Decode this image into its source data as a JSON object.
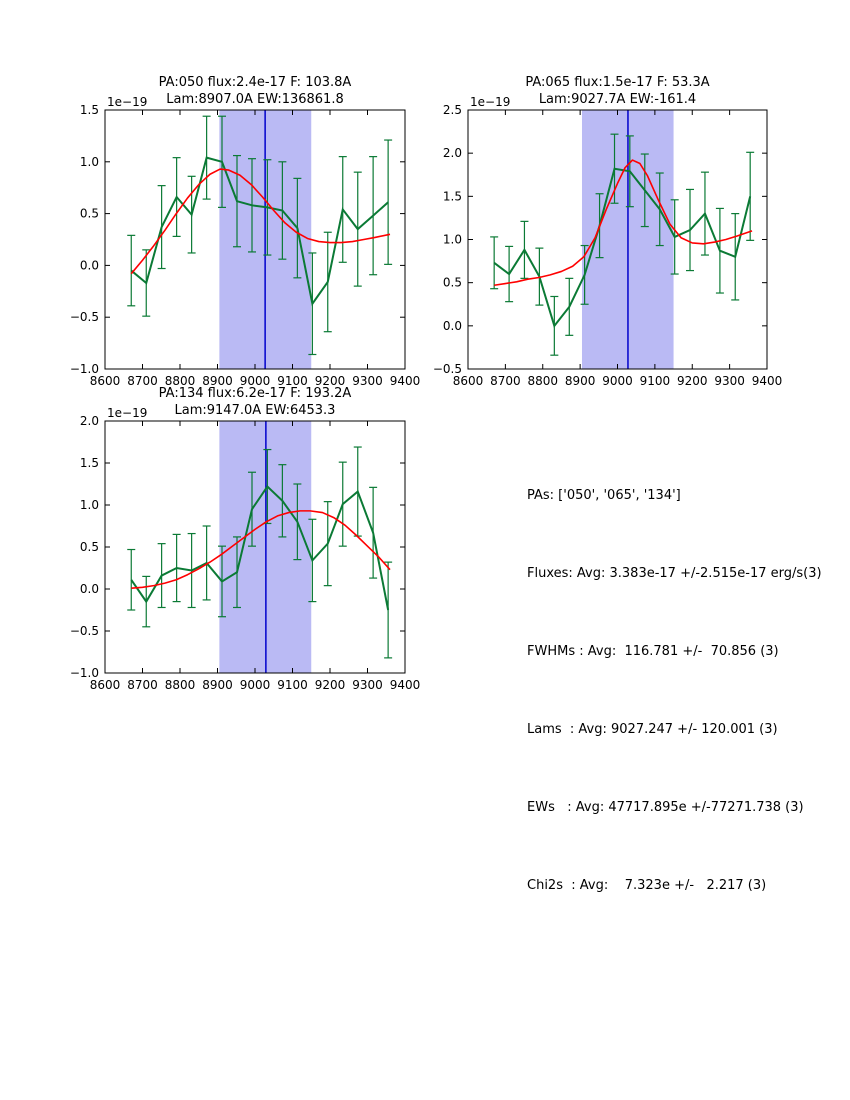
{
  "colors": {
    "data_line": "#0b7a35",
    "error_bar": "#0b7a35",
    "fit_line": "#ff0000",
    "band_fill": "#babaf4",
    "center_line": "#0000cc",
    "axis": "#000000",
    "background": "#ffffff"
  },
  "stats_panel": {
    "lines": [
      "PAs: ['050', '065', '134']",
      "Fluxes: Avg: 3.383e-17 +/-2.515e-17 erg/s(3)",
      "FWHMs : Avg:  116.781 +/-  70.856 (3)",
      "Lams  : Avg: 9027.247 +/- 120.001 (3)",
      "EWs   : Avg: 47717.895e +/-77271.738 (3)",
      "Chi2s  : Avg:    7.323e +/-   2.217 (3)"
    ]
  },
  "chart_data": [
    {
      "type": "line",
      "title_line1": "PA:050 flux:2.4e-17 F: 103.8A",
      "title_line2": "Lam:8907.0A EW:136861.8",
      "offset_label": "1e−19",
      "xlim": [
        8600,
        9400
      ],
      "ylim": [
        -1.0,
        1.5
      ],
      "xtick_values": [
        8600,
        8700,
        8800,
        8900,
        9000,
        9100,
        9200,
        9300,
        9400
      ],
      "xtick_labels": [
        "8600",
        "8700",
        "8800",
        "8900",
        "9000",
        "9100",
        "9200",
        "9300",
        "9400"
      ],
      "ytick_values": [
        -1.0,
        -0.5,
        0.0,
        0.5,
        1.0,
        1.5
      ],
      "ytick_labels": [
        "−1.0",
        "−0.5",
        "0.0",
        "0.5",
        "1.0",
        "1.5"
      ],
      "band": [
        8905,
        9150
      ],
      "center_line_x": 9027,
      "grid": false,
      "legend": null,
      "data_series": {
        "name": "spectrum",
        "x": [
          8670,
          8710,
          8751,
          8791,
          8831,
          8871,
          8912,
          8952,
          8992,
          9033,
          9073,
          9113,
          9153,
          9194,
          9234,
          9274,
          9315,
          9355
        ],
        "y": [
          -0.05,
          -0.17,
          0.37,
          0.66,
          0.49,
          1.04,
          1.0,
          0.62,
          0.58,
          0.56,
          0.53,
          0.36,
          -0.37,
          -0.16,
          0.54,
          0.35,
          0.48,
          0.61
        ],
        "yerr": [
          0.34,
          0.32,
          0.4,
          0.38,
          0.37,
          0.4,
          0.44,
          0.44,
          0.45,
          0.46,
          0.47,
          0.48,
          0.49,
          0.48,
          0.51,
          0.55,
          0.57,
          0.6
        ]
      },
      "fit_series": {
        "name": "gaussian-fit",
        "x": [
          8670,
          8700,
          8730,
          8760,
          8790,
          8820,
          8850,
          8880,
          8907,
          8930,
          8960,
          8990,
          9020,
          9050,
          9080,
          9110,
          9140,
          9170,
          9200,
          9230,
          9260,
          9290,
          9320,
          9360
        ],
        "y": [
          -0.08,
          0.05,
          0.19,
          0.34,
          0.5,
          0.65,
          0.78,
          0.88,
          0.93,
          0.92,
          0.87,
          0.78,
          0.66,
          0.53,
          0.41,
          0.32,
          0.26,
          0.23,
          0.22,
          0.22,
          0.23,
          0.25,
          0.27,
          0.3
        ]
      }
    },
    {
      "type": "line",
      "title_line1": "PA:065 flux:1.5e-17 F: 53.3A",
      "title_line2": "Lam:9027.7A EW:-161.4",
      "offset_label": "1e−19",
      "xlim": [
        8600,
        9400
      ],
      "ylim": [
        -0.5,
        2.5
      ],
      "xtick_values": [
        8600,
        8700,
        8800,
        8900,
        9000,
        9100,
        9200,
        9300,
        9400
      ],
      "xtick_labels": [
        "8600",
        "8700",
        "8800",
        "8900",
        "9000",
        "9100",
        "9200",
        "9300",
        "9400"
      ],
      "ytick_values": [
        -0.5,
        0.0,
        0.5,
        1.0,
        1.5,
        2.0,
        2.5
      ],
      "ytick_labels": [
        "−0.5",
        "0.0",
        "0.5",
        "1.0",
        "1.5",
        "2.0",
        "2.5"
      ],
      "band": [
        8905,
        9150
      ],
      "center_line_x": 9028,
      "grid": false,
      "legend": null,
      "data_series": {
        "name": "spectrum",
        "x": [
          8670,
          8710,
          8751,
          8791,
          8831,
          8871,
          8912,
          8952,
          8992,
          9033,
          9073,
          9113,
          9153,
          9194,
          9234,
          9274,
          9315,
          9355
        ],
        "y": [
          0.73,
          0.6,
          0.88,
          0.57,
          0.0,
          0.22,
          0.59,
          1.16,
          1.82,
          1.79,
          1.57,
          1.35,
          1.03,
          1.11,
          1.3,
          0.87,
          0.8,
          1.5
        ],
        "yerr": [
          0.3,
          0.32,
          0.33,
          0.33,
          0.34,
          0.33,
          0.34,
          0.37,
          0.4,
          0.41,
          0.42,
          0.42,
          0.43,
          0.47,
          0.48,
          0.49,
          0.5,
          0.51
        ]
      },
      "fit_series": {
        "name": "gaussian-fit",
        "x": [
          8670,
          8700,
          8730,
          8760,
          8790,
          8820,
          8850,
          8880,
          8910,
          8940,
          8970,
          9000,
          9020,
          9040,
          9060,
          9080,
          9110,
          9140,
          9170,
          9200,
          9230,
          9260,
          9290,
          9320,
          9360
        ],
        "y": [
          0.47,
          0.49,
          0.51,
          0.54,
          0.56,
          0.59,
          0.63,
          0.69,
          0.8,
          1.02,
          1.35,
          1.65,
          1.83,
          1.92,
          1.88,
          1.74,
          1.45,
          1.18,
          1.02,
          0.96,
          0.95,
          0.97,
          1.0,
          1.04,
          1.1
        ]
      }
    },
    {
      "type": "line",
      "title_line1": "PA:134 flux:6.2e-17 F: 193.2A",
      "title_line2": "Lam:9147.0A EW:6453.3",
      "offset_label": "1e−19",
      "xlim": [
        8600,
        9400
      ],
      "ylim": [
        -1.0,
        2.0
      ],
      "xtick_values": [
        8600,
        8700,
        8800,
        8900,
        9000,
        9100,
        9200,
        9300,
        9400
      ],
      "xtick_labels": [
        "8600",
        "8700",
        "8800",
        "8900",
        "9000",
        "9100",
        "9200",
        "9300",
        "9400"
      ],
      "ytick_values": [
        -1.0,
        -0.5,
        0.0,
        0.5,
        1.0,
        1.5,
        2.0
      ],
      "ytick_labels": [
        "−1.0",
        "−0.5",
        "0.0",
        "0.5",
        "1.0",
        "1.5",
        "2.0"
      ],
      "band": [
        8905,
        9150
      ],
      "center_line_x": 9029,
      "grid": false,
      "legend": null,
      "data_series": {
        "name": "spectrum",
        "x": [
          8670,
          8710,
          8751,
          8791,
          8831,
          8871,
          8912,
          8952,
          8992,
          9033,
          9073,
          9113,
          9153,
          9194,
          9234,
          9274,
          9315,
          9355
        ],
        "y": [
          0.11,
          -0.15,
          0.16,
          0.25,
          0.22,
          0.31,
          0.09,
          0.2,
          0.95,
          1.22,
          1.05,
          0.8,
          0.34,
          0.54,
          1.01,
          1.16,
          0.67,
          -0.25
        ],
        "yerr": [
          0.36,
          0.3,
          0.38,
          0.4,
          0.44,
          0.44,
          0.42,
          0.42,
          0.44,
          0.44,
          0.43,
          0.45,
          0.49,
          0.5,
          0.5,
          0.53,
          0.54,
          0.57
        ]
      },
      "fit_series": {
        "name": "gaussian-fit",
        "x": [
          8670,
          8700,
          8730,
          8760,
          8790,
          8820,
          8850,
          8880,
          8910,
          8940,
          8970,
          9000,
          9030,
          9060,
          9090,
          9120,
          9147,
          9180,
          9210,
          9240,
          9270,
          9300,
          9330,
          9360
        ],
        "y": [
          0.01,
          0.02,
          0.04,
          0.07,
          0.11,
          0.17,
          0.24,
          0.32,
          0.41,
          0.51,
          0.61,
          0.71,
          0.8,
          0.87,
          0.91,
          0.93,
          0.93,
          0.91,
          0.85,
          0.76,
          0.64,
          0.51,
          0.38,
          0.23
        ]
      }
    }
  ]
}
